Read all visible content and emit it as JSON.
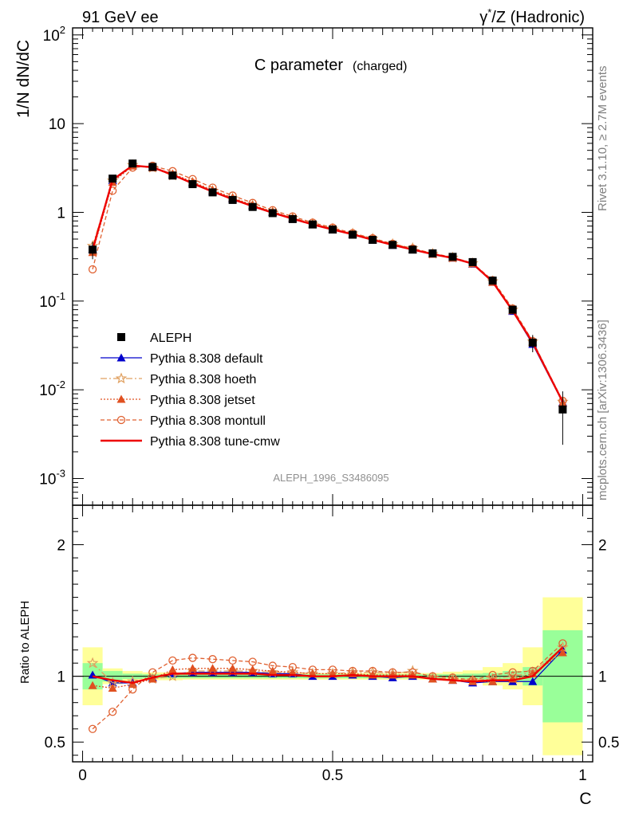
{
  "header": {
    "left": "91 GeV ee",
    "right_prefix": "γ",
    "right_sup": "*",
    "right_suffix": "/Z (Hadronic)"
  },
  "side_labels": {
    "rivet": "Rivet 3.1.10, ≥ 2.7M events",
    "mcplots": "mcplots.cern.ch [arXiv:1306.3436]"
  },
  "chart_data": {
    "type": "line",
    "title_main": "C parameter",
    "title_sub": "(charged)",
    "analysis": "ALEPH_1996_S3486095",
    "xlabel": "C",
    "ylabel_main": "1/N dN/dC",
    "ylabel_ratio": "Ratio to ALEPH",
    "xlim": [
      -0.02,
      1.02
    ],
    "ylim_main": [
      0.0005,
      120
    ],
    "yscale_main": "log",
    "ylim_ratio": [
      0.35,
      2.3
    ],
    "x_ticks": [
      "0",
      "0.5",
      "1"
    ],
    "y_ticks_main": [
      {
        "value": 0.001,
        "base": "10",
        "exp": "-3"
      },
      {
        "value": 0.01,
        "base": "10",
        "exp": "-2"
      },
      {
        "value": 0.1,
        "base": "10",
        "exp": "-1"
      },
      {
        "value": 1,
        "base": "1",
        "exp": ""
      },
      {
        "value": 10,
        "base": "10",
        "exp": ""
      },
      {
        "value": 100,
        "base": "10",
        "exp": "2"
      }
    ],
    "y_ticks_ratio": [
      "0.5",
      "1",
      "2"
    ],
    "legend_position": "lower-left",
    "x": [
      0.02,
      0.06,
      0.1,
      0.14,
      0.18,
      0.22,
      0.26,
      0.3,
      0.34,
      0.38,
      0.42,
      0.46,
      0.5,
      0.54,
      0.58,
      0.62,
      0.66,
      0.7,
      0.74,
      0.78,
      0.82,
      0.86,
      0.9,
      0.96
    ],
    "x_edges": [
      0.0,
      0.04,
      0.08,
      0.12,
      0.16,
      0.2,
      0.24,
      0.28,
      0.32,
      0.36,
      0.4,
      0.44,
      0.48,
      0.52,
      0.56,
      0.6,
      0.64,
      0.68,
      0.72,
      0.76,
      0.8,
      0.84,
      0.88,
      0.92,
      1.0
    ],
    "data": {
      "name": "ALEPH",
      "color": "#000000",
      "values": [
        0.38,
        2.4,
        3.55,
        3.25,
        2.6,
        2.08,
        1.68,
        1.38,
        1.15,
        0.98,
        0.84,
        0.73,
        0.64,
        0.56,
        0.49,
        0.43,
        0.38,
        0.345,
        0.315,
        0.275,
        0.17,
        0.08,
        0.034,
        0.006
      ],
      "err_inner": [
        0.1,
        0.04,
        0.02,
        0.015,
        0.015,
        0.015,
        0.015,
        0.015,
        0.015,
        0.015,
        0.015,
        0.015,
        0.015,
        0.015,
        0.015,
        0.015,
        0.015,
        0.015,
        0.015,
        0.02,
        0.025,
        0.04,
        0.07,
        0.35
      ],
      "err_outer": [
        0.22,
        0.06,
        0.04,
        0.03,
        0.03,
        0.025,
        0.025,
        0.025,
        0.025,
        0.025,
        0.025,
        0.025,
        0.025,
        0.025,
        0.025,
        0.025,
        0.025,
        0.025,
        0.035,
        0.045,
        0.07,
        0.1,
        0.22,
        0.6
      ]
    },
    "series": [
      {
        "name": "Pythia 8.308 default",
        "color": "#0000cc",
        "dash": "",
        "marker": "triangle-filled",
        "ratio": [
          1.01,
          0.95,
          0.95,
          0.99,
          1.02,
          1.03,
          1.03,
          1.03,
          1.03,
          1.02,
          1.02,
          1.0,
          1.0,
          1.01,
          1.0,
          0.99,
          1.0,
          0.98,
          0.97,
          0.95,
          0.96,
          0.96,
          0.96,
          1.2
        ]
      },
      {
        "name": "Pythia 8.308 hoeth",
        "color": "#e0a060",
        "dash": "8 3 2 3",
        "marker": "star-open",
        "ratio": [
          1.1,
          0.95,
          0.96,
          0.98,
          1.0,
          1.04,
          1.04,
          1.04,
          1.04,
          1.03,
          1.03,
          1.02,
          1.02,
          1.03,
          1.03,
          1.02,
          1.04,
          0.99,
          0.98,
          0.97,
          0.98,
          1.0,
          1.03,
          1.22
        ]
      },
      {
        "name": "Pythia 8.308 jetset",
        "color": "#e05020",
        "dash": "2 2",
        "marker": "triangle-filled",
        "ratio": [
          0.93,
          0.91,
          0.94,
          0.98,
          1.05,
          1.06,
          1.06,
          1.06,
          1.05,
          1.04,
          1.03,
          1.02,
          1.02,
          1.02,
          1.01,
          1.01,
          1.01,
          0.98,
          0.97,
          0.96,
          0.96,
          0.98,
          1.02,
          1.18
        ]
      },
      {
        "name": "Pythia 8.308 montull",
        "color": "#e06030",
        "dash": "5 3",
        "marker": "circle-open",
        "ratio": [
          0.6,
          0.73,
          0.9,
          1.03,
          1.12,
          1.14,
          1.13,
          1.12,
          1.11,
          1.08,
          1.07,
          1.05,
          1.05,
          1.04,
          1.04,
          1.03,
          1.03,
          1.0,
          0.99,
          0.97,
          1.01,
          1.03,
          1.04,
          1.25
        ]
      },
      {
        "name": "Pythia 8.308 tune-cmw",
        "color": "#ee0000",
        "dash": "",
        "marker": "none",
        "ratio": [
          1.0,
          0.97,
          0.95,
          0.99,
          1.02,
          1.02,
          1.02,
          1.02,
          1.02,
          1.01,
          1.01,
          1.0,
          1.0,
          1.01,
          1.0,
          1.0,
          1.0,
          0.98,
          0.97,
          0.96,
          0.97,
          0.97,
          1.0,
          1.22
        ]
      }
    ]
  }
}
